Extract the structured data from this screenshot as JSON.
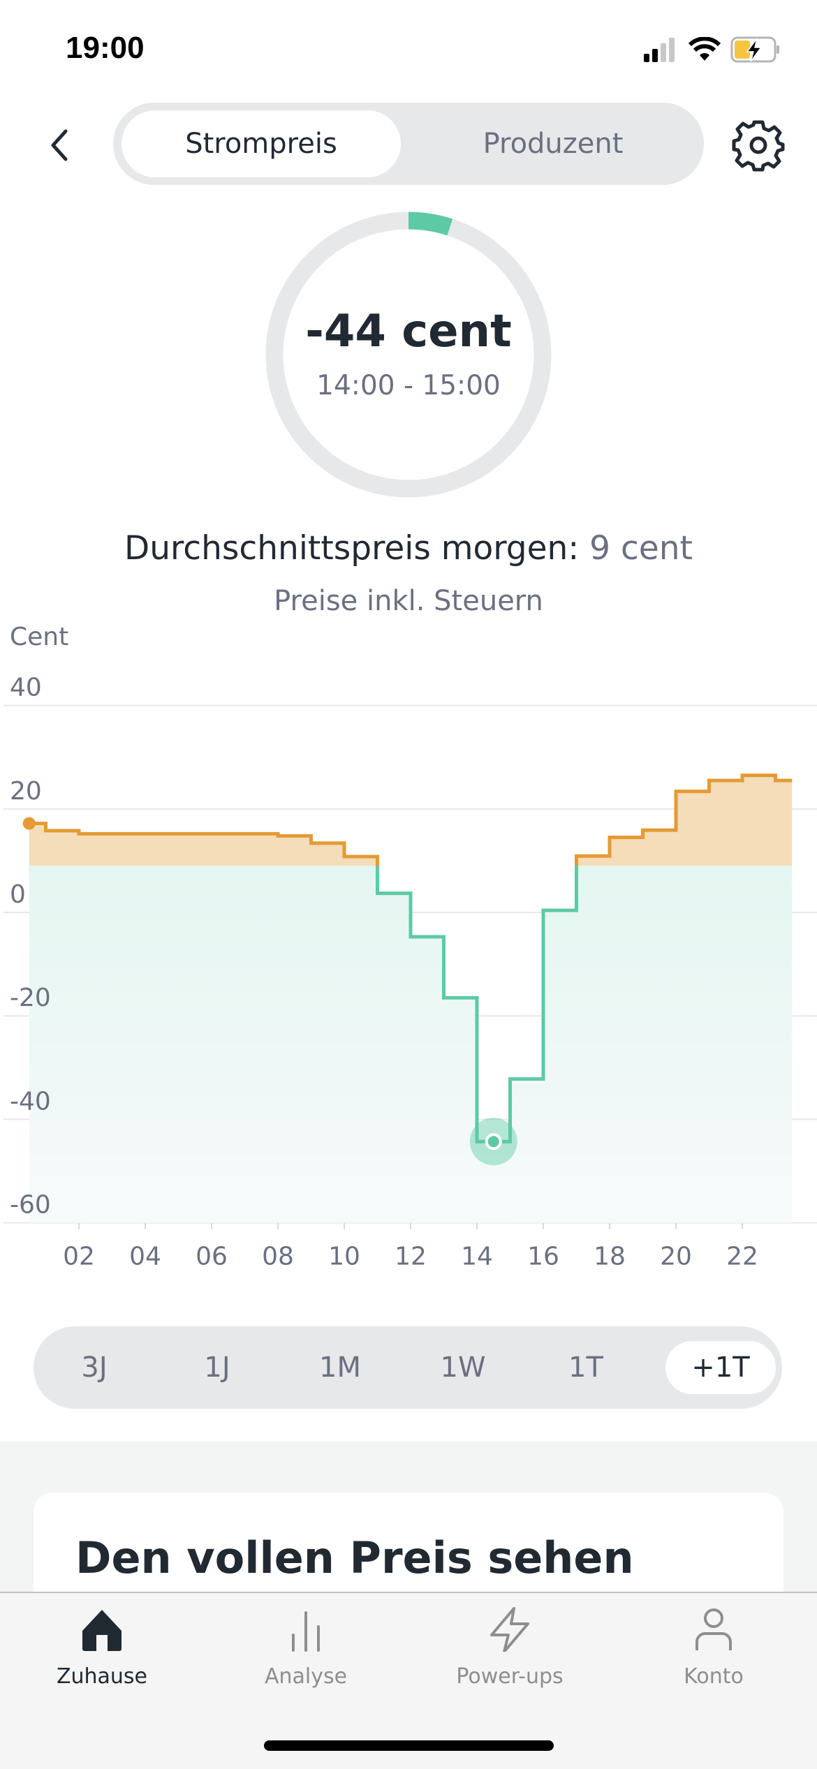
{
  "status_bar": {
    "time": "19:00"
  },
  "header": {
    "segments": [
      {
        "label": "Strompreis",
        "selected": true
      },
      {
        "label": "Produzent",
        "selected": false
      }
    ],
    "back_icon": "chevron-left-icon",
    "settings_icon": "gear-icon"
  },
  "current": {
    "price_value": "-44",
    "price_unit": "cent",
    "time_range": "14:00 - 15:00",
    "gauge_fraction": 0.05
  },
  "summary": {
    "avg_label": "Durchschnittspreis morgen:",
    "avg_value": "9 cent",
    "tax_note": "Preise inkl. Steuern"
  },
  "colors": {
    "green": "#5dcaa5",
    "orange": "#e59a35",
    "orange_fill": "#f4ddb8",
    "green_fill": "#dff5ee",
    "text": "#212932",
    "muted": "#6b7080"
  },
  "chart_data": {
    "type": "line",
    "step": true,
    "ylabel": "Cent",
    "ylim": [
      -60,
      40
    ],
    "yticks": [
      "40",
      "20",
      "0",
      "-20",
      "-40",
      "-60"
    ],
    "ytick_values": [
      40,
      20,
      0,
      -20,
      -40,
      -60
    ],
    "xticks": [
      "02",
      "04",
      "06",
      "08",
      "10",
      "12",
      "14",
      "16",
      "18",
      "20",
      "22"
    ],
    "xtick_values": [
      2,
      4,
      6,
      8,
      10,
      12,
      14,
      16,
      18,
      20,
      22
    ],
    "x": [
      0,
      1,
      2,
      3,
      4,
      5,
      6,
      7,
      8,
      9,
      10,
      11,
      12,
      13,
      14,
      15,
      16,
      17,
      18,
      19,
      20,
      21,
      22,
      23
    ],
    "values": [
      17.2,
      15.8,
      15.2,
      15.2,
      15.2,
      15.2,
      15.2,
      15.2,
      14.8,
      13.4,
      10.8,
      3.7,
      -4.7,
      -16.5,
      -44.3,
      -32.2,
      0.4,
      10.9,
      14.5,
      15.9,
      23.4,
      25.5,
      26.5,
      25.5
    ],
    "average": 9,
    "selected_hour": 14,
    "grid": true
  },
  "range_selector": {
    "options": [
      {
        "label": "3J",
        "selected": false
      },
      {
        "label": "1J",
        "selected": false
      },
      {
        "label": "1M",
        "selected": false
      },
      {
        "label": "1W",
        "selected": false
      },
      {
        "label": "1T",
        "selected": false
      },
      {
        "label": "+1T",
        "selected": true
      }
    ]
  },
  "card": {
    "title": "Den vollen Preis sehen"
  },
  "tab_bar": {
    "items": [
      {
        "label": "Zuhause",
        "icon": "home-icon",
        "active": true
      },
      {
        "label": "Analyse",
        "icon": "bar-chart-icon",
        "active": false
      },
      {
        "label": "Power-ups",
        "icon": "lightning-icon",
        "active": false
      },
      {
        "label": "Konto",
        "icon": "person-icon",
        "active": false
      }
    ]
  }
}
